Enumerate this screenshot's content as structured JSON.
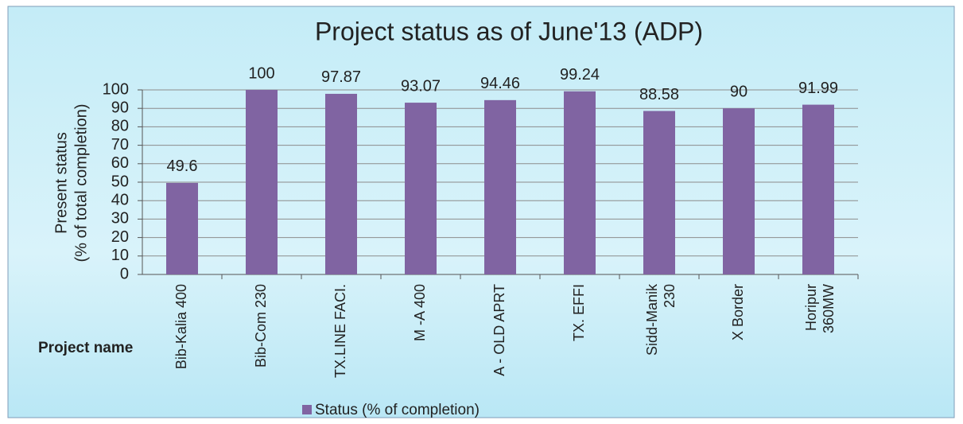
{
  "chart_data": {
    "type": "bar",
    "title": "Project  status as of  June'13 (ADP)",
    "ylabel": [
      "Present status",
      "(% of total completion)"
    ],
    "xlabel": "Project name",
    "categories": [
      "Bib-Kalia 400",
      "Bib-Com 230",
      "TX.LINE FACI.",
      "M -A 400",
      "A - OLD APRT",
      "TX. EFFI",
      "Sidd-Manik 230",
      "X Border",
      "Horipur 360MW"
    ],
    "series": [
      {
        "name": "Status (% of completion)",
        "color": "#8064a2",
        "values": [
          49.6,
          100,
          97.87,
          93.07,
          94.46,
          99.24,
          88.58,
          90,
          91.99
        ]
      }
    ],
    "ylim": [
      0,
      100
    ],
    "yticks": [
      0,
      10,
      20,
      30,
      40,
      50,
      60,
      70,
      80,
      90,
      100
    ],
    "grid": true,
    "legend": "bottom"
  }
}
